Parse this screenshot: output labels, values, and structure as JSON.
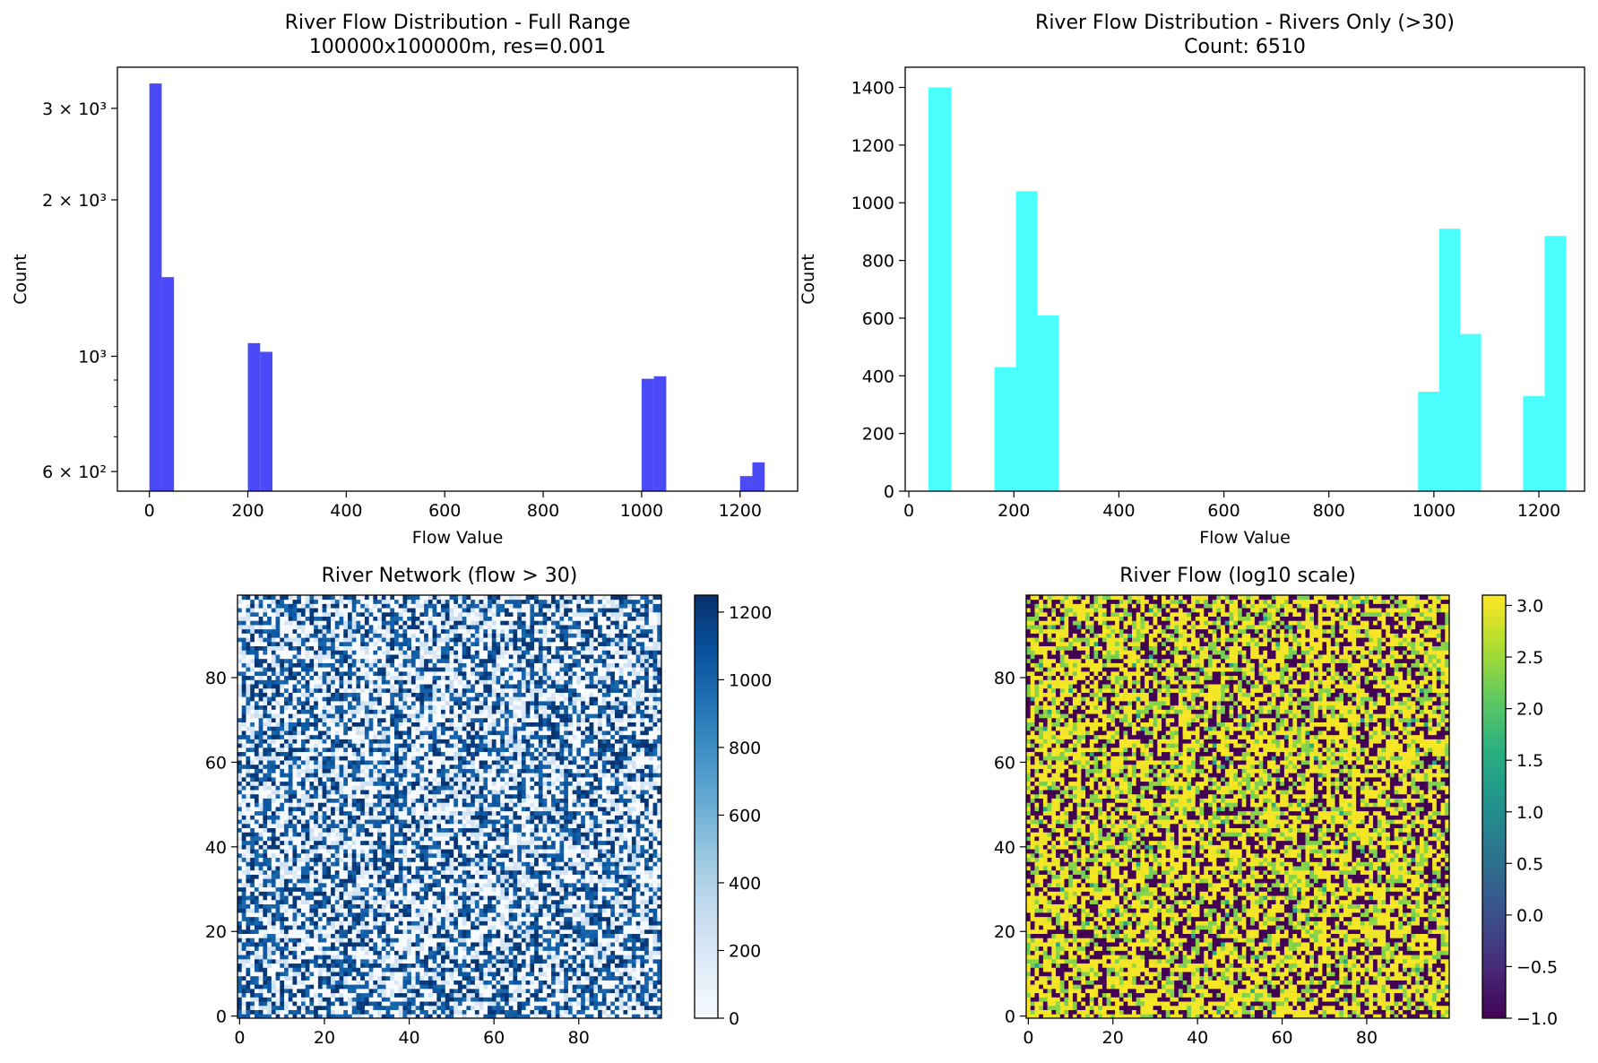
{
  "chart_data": [
    {
      "type": "bar",
      "subtype": "histogram",
      "title": "River Flow Distribution - Full Range",
      "subtitle": "100000x100000m, res=0.001",
      "xlabel": "Flow Value",
      "ylabel": "Count",
      "yscale": "log",
      "color": "#4a4af7",
      "xlim": [
        -65,
        1317
      ],
      "ylim": [
        550,
        3600
      ],
      "xticks": [
        0,
        200,
        400,
        600,
        800,
        1000,
        1200
      ],
      "xtick_labels": [
        "0",
        "200",
        "400",
        "600",
        "800",
        "1000",
        "1200"
      ],
      "yticks": [
        600,
        1000,
        2000,
        3000
      ],
      "ytick_labels": [
        "6 × 10²",
        "10³",
        "2 × 10³",
        "3 × 10³"
      ],
      "grid": false,
      "bins": [
        {
          "x0": 0,
          "x1": 25,
          "count": 3350
        },
        {
          "x0": 25,
          "x1": 50,
          "count": 1420
        },
        {
          "x0": 200,
          "x1": 225,
          "count": 1060
        },
        {
          "x0": 225,
          "x1": 250,
          "count": 1020
        },
        {
          "x0": 1000,
          "x1": 1025,
          "count": 905
        },
        {
          "x0": 1025,
          "x1": 1050,
          "count": 915
        },
        {
          "x0": 1200,
          "x1": 1225,
          "count": 588
        },
        {
          "x0": 1225,
          "x1": 1250,
          "count": 625
        }
      ]
    },
    {
      "type": "bar",
      "subtype": "histogram",
      "title": "River Flow Distribution - Rivers Only (>30)",
      "subtitle": "Count: 6510",
      "xlabel": "Flow Value",
      "ylabel": "Count",
      "color": "#4bfffe",
      "xlim": [
        -7,
        1287
      ],
      "ylim": [
        0,
        1470
      ],
      "xticks": [
        0,
        200,
        400,
        600,
        800,
        1000,
        1200
      ],
      "xtick_labels": [
        "0",
        "200",
        "400",
        "600",
        "800",
        "1000",
        "1200"
      ],
      "yticks": [
        0,
        200,
        400,
        600,
        800,
        1000,
        1200,
        1400
      ],
      "ytick_labels": [
        "0",
        "200",
        "400",
        "600",
        "800",
        "1000",
        "1200",
        "1400"
      ],
      "grid": false,
      "bins": [
        {
          "x0": 37,
          "x1": 81,
          "count": 1400
        },
        {
          "x0": 163,
          "x1": 204,
          "count": 430
        },
        {
          "x0": 204,
          "x1": 245,
          "count": 1040
        },
        {
          "x0": 245,
          "x1": 286,
          "count": 610
        },
        {
          "x0": 970,
          "x1": 1010,
          "count": 345
        },
        {
          "x0": 1010,
          "x1": 1050,
          "count": 910
        },
        {
          "x0": 1050,
          "x1": 1090,
          "count": 545
        },
        {
          "x0": 1170,
          "x1": 1211,
          "count": 330
        },
        {
          "x0": 1211,
          "x1": 1252,
          "count": 885
        }
      ]
    },
    {
      "type": "heatmap",
      "title": "River Network (flow > 30)",
      "colormap": "Blues",
      "grid_size": [
        100,
        100
      ],
      "xlim": [
        0,
        99
      ],
      "ylim": [
        0,
        99
      ],
      "xticks": [
        0,
        20,
        40,
        60,
        80
      ],
      "xtick_labels": [
        "0",
        "20",
        "40",
        "60",
        "80"
      ],
      "yticks": [
        0,
        20,
        40,
        60,
        80
      ],
      "ytick_labels": [
        "0",
        "20",
        "40",
        "60",
        "80"
      ],
      "colorbar": {
        "range": [
          0,
          1250
        ],
        "ticks": [
          0,
          200,
          400,
          600,
          800,
          1000,
          1200
        ],
        "tick_labels": [
          "0",
          "200",
          "400",
          "600",
          "800",
          "1000",
          "1200"
        ]
      }
    },
    {
      "type": "heatmap",
      "title": "River Flow (log10 scale)",
      "colormap": "viridis",
      "grid_size": [
        100,
        100
      ],
      "xlim": [
        0,
        99
      ],
      "ylim": [
        0,
        99
      ],
      "xticks": [
        0,
        20,
        40,
        60,
        80
      ],
      "xtick_labels": [
        "0",
        "20",
        "40",
        "60",
        "80"
      ],
      "yticks": [
        0,
        20,
        40,
        60,
        80
      ],
      "ytick_labels": [
        "0",
        "20",
        "40",
        "60",
        "80"
      ],
      "colorbar": {
        "range": [
          -1.0,
          3.1
        ],
        "ticks": [
          -1.0,
          -0.5,
          0.0,
          0.5,
          1.0,
          1.5,
          2.0,
          2.5,
          3.0
        ],
        "tick_labels": [
          "−1.0",
          "−0.5",
          "0.0",
          "0.5",
          "1.0",
          "1.5",
          "2.0",
          "2.5",
          "3.0"
        ]
      }
    }
  ]
}
